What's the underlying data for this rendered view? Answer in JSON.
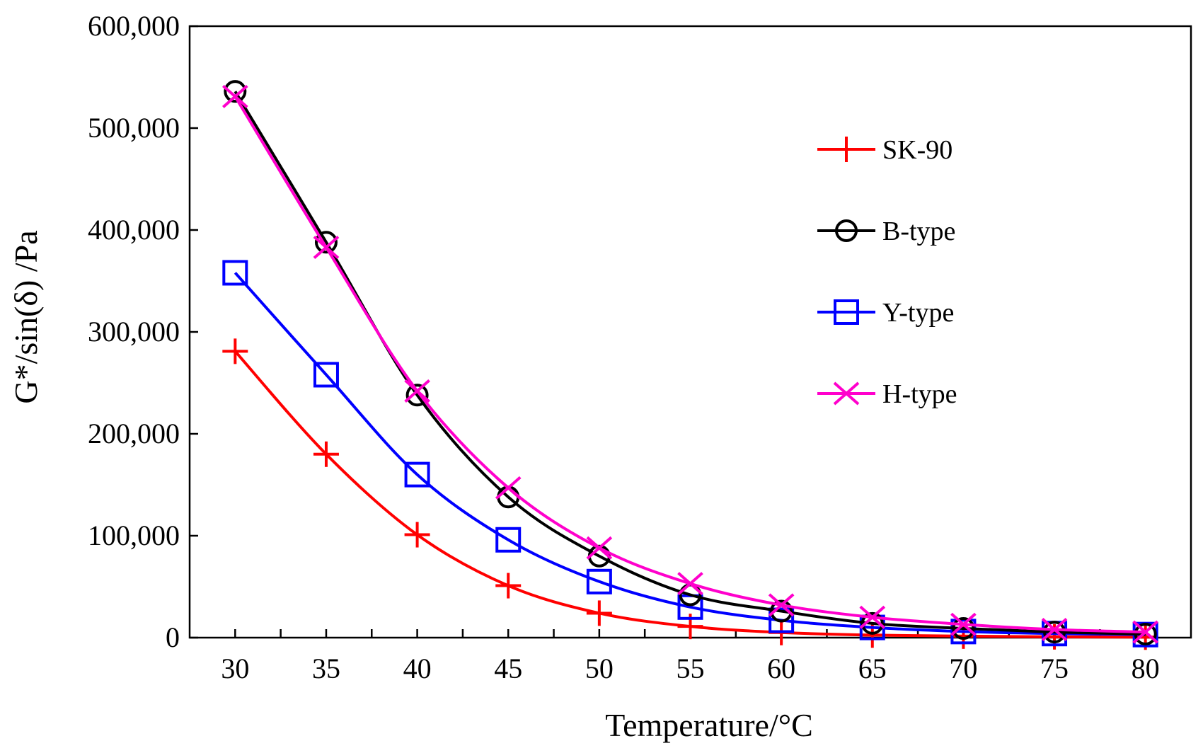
{
  "chart_data": {
    "type": "line",
    "title": "",
    "xlabel": "Temperature/°C",
    "ylabel": "G*/sin(δ) /Pa",
    "x": [
      30,
      35,
      40,
      45,
      50,
      55,
      60,
      65,
      70,
      75,
      80
    ],
    "xlim": [
      27.5,
      82.5
    ],
    "ylim": [
      0,
      600000
    ],
    "xticks": [
      30,
      35,
      40,
      45,
      50,
      55,
      60,
      65,
      70,
      75,
      80
    ],
    "yticks": [
      0,
      100000,
      200000,
      300000,
      400000,
      500000,
      600000
    ],
    "ytick_labels": [
      "0",
      "100,000",
      "200,000",
      "300,000",
      "400,000",
      "500,000",
      "600,000"
    ],
    "grid": false,
    "legend_position": "upper-right",
    "series": [
      {
        "name": "SK-90",
        "color": "#ff0000",
        "marker": "plus",
        "values": [
          281000,
          180000,
          101000,
          51000,
          24000,
          11000,
          5000,
          2500,
          1500,
          800,
          500
        ]
      },
      {
        "name": "B-type",
        "color": "#000000",
        "marker": "circle",
        "values": [
          536000,
          388000,
          238000,
          138000,
          80000,
          42000,
          26000,
          14000,
          9000,
          5500,
          3500
        ]
      },
      {
        "name": "Y-type",
        "color": "#0000ff",
        "marker": "square",
        "values": [
          358000,
          258000,
          160000,
          96000,
          55000,
          30000,
          17000,
          10000,
          6000,
          4000,
          3000
        ]
      },
      {
        "name": "H-type",
        "color": "#ff00cc",
        "marker": "x",
        "values": [
          531000,
          383000,
          242000,
          147000,
          88000,
          53000,
          32000,
          20000,
          13000,
          8000,
          5500
        ]
      }
    ]
  }
}
